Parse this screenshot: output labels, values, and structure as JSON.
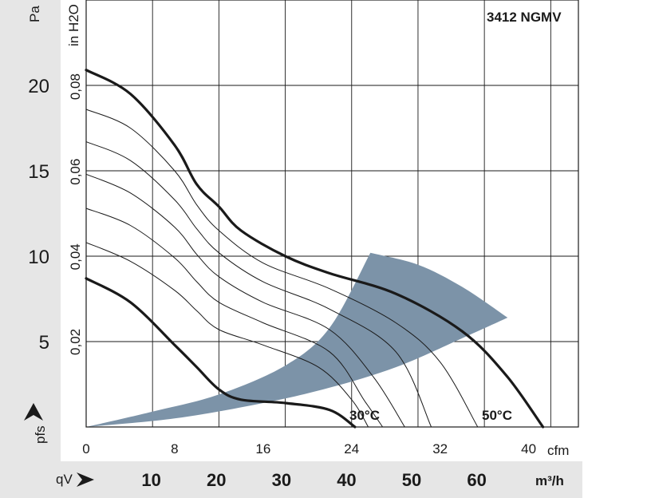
{
  "chart_data": {
    "type": "line",
    "model": "3412  NGMV",
    "x_axis": {
      "unit": "cfm",
      "ticks": [
        0,
        8,
        16,
        24,
        32,
        40
      ],
      "range": [
        0,
        44.5
      ]
    },
    "x_axis_secondary": {
      "label": "qV",
      "unit": "m³/h",
      "ticks": [
        10,
        20,
        30,
        40,
        50,
        60
      ]
    },
    "y_axis": {
      "label": "pfs",
      "unit": "Pa",
      "ticks": [
        5,
        10,
        15,
        20
      ],
      "range": [
        0,
        25
      ]
    },
    "y_axis_secondary": {
      "unit": "in H2O",
      "tick_labels": [
        "0,02",
        "0,04",
        "0,06",
        "0,08"
      ],
      "ticks": [
        0.02,
        0.04,
        0.06,
        0.08
      ]
    },
    "grid": true,
    "temperature_labels": [
      "30°C",
      "50°C"
    ],
    "series": [
      {
        "style": "bold",
        "points": [
          [
            0,
            20.9
          ],
          [
            4,
            19.5
          ],
          [
            8,
            16.5
          ],
          [
            10,
            14.2
          ],
          [
            12,
            12.9
          ],
          [
            14,
            11.5
          ],
          [
            18,
            10.0
          ],
          [
            22,
            9.0
          ],
          [
            28,
            7.8
          ],
          [
            34,
            5.6
          ],
          [
            38,
            3.0
          ],
          [
            41.3,
            0.0
          ]
        ]
      },
      {
        "style": "thin",
        "points": [
          [
            0,
            18.6
          ],
          [
            4,
            17.5
          ],
          [
            8,
            15.0
          ],
          [
            10,
            13.0
          ],
          [
            12,
            11.5
          ],
          [
            16,
            9.6
          ],
          [
            22,
            8.1
          ],
          [
            28,
            6.1
          ],
          [
            32,
            3.8
          ],
          [
            35.4,
            0.0
          ]
        ]
      },
      {
        "style": "thin",
        "points": [
          [
            0,
            16.7
          ],
          [
            4,
            15.6
          ],
          [
            8,
            13.3
          ],
          [
            10,
            11.6
          ],
          [
            12,
            10.2
          ],
          [
            16,
            8.5
          ],
          [
            22,
            6.9
          ],
          [
            28,
            4.4
          ],
          [
            31.2,
            0.0
          ]
        ]
      },
      {
        "style": "thin",
        "points": [
          [
            0,
            14.8
          ],
          [
            4,
            13.7
          ],
          [
            8,
            11.7
          ],
          [
            10,
            10.1
          ],
          [
            12,
            8.8
          ],
          [
            16,
            7.3
          ],
          [
            22,
            5.7
          ],
          [
            26,
            2.9
          ],
          [
            28.8,
            0.0
          ]
        ]
      },
      {
        "style": "thin",
        "points": [
          [
            0,
            12.8
          ],
          [
            4,
            11.8
          ],
          [
            8,
            9.9
          ],
          [
            10,
            8.5
          ],
          [
            12,
            7.3
          ],
          [
            16,
            6.1
          ],
          [
            22,
            4.4
          ],
          [
            25.2,
            1.5
          ],
          [
            26.8,
            0.0
          ]
        ]
      },
      {
        "style": "thin",
        "points": [
          [
            0,
            10.8
          ],
          [
            4,
            9.7
          ],
          [
            8,
            8.0
          ],
          [
            10,
            6.8
          ],
          [
            12,
            5.7
          ],
          [
            16,
            4.8
          ],
          [
            21,
            3.5
          ],
          [
            24,
            1.6
          ],
          [
            25.5,
            0.0
          ]
        ]
      },
      {
        "style": "bold",
        "points": [
          [
            0,
            8.7
          ],
          [
            4,
            7.3
          ],
          [
            8,
            4.8
          ],
          [
            10,
            3.5
          ],
          [
            12,
            2.2
          ],
          [
            14,
            1.6
          ],
          [
            18,
            1.4
          ],
          [
            22,
            1.0
          ],
          [
            24.3,
            0.0
          ]
        ]
      }
    ],
    "operating_region": {
      "color": "#7c93a8",
      "upper_edge": [
        [
          0,
          0.0
        ],
        [
          6,
          0.9
        ],
        [
          12,
          1.9
        ],
        [
          18,
          3.6
        ],
        [
          22,
          5.8
        ],
        [
          25.7,
          10.2
        ]
      ],
      "outer_edge": [
        [
          25.7,
          10.2
        ],
        [
          30,
          9.5
        ],
        [
          34,
          8.2
        ],
        [
          38.1,
          6.4
        ]
      ],
      "lower_edge": [
        [
          38.1,
          6.4
        ],
        [
          34,
          5.2
        ],
        [
          28,
          3.5
        ],
        [
          22,
          2.3
        ],
        [
          16,
          1.4
        ],
        [
          8,
          0.5
        ],
        [
          0,
          0.0
        ]
      ]
    }
  }
}
